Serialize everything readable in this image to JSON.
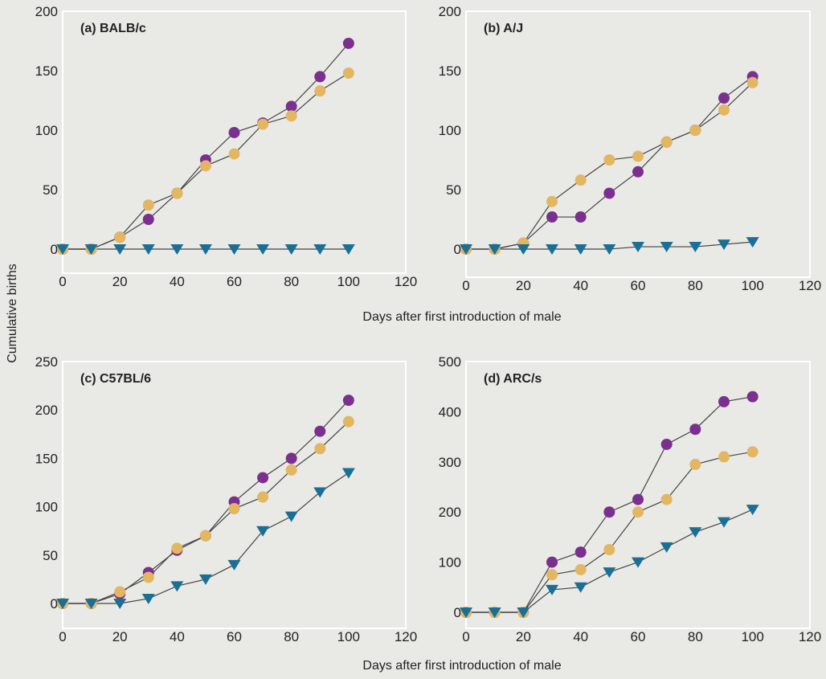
{
  "figure": {
    "y_label": "Cumulative births",
    "x_label_top": "Days after first introduction of male",
    "x_label_bottom": "Days after first introduction of male"
  },
  "colors": {
    "purple": "#7b2f8e",
    "tan": "#e3b661",
    "teal": "#1a6f95",
    "line": "#444444",
    "frame": "#ffffff"
  },
  "chart_data": [
    {
      "type": "line",
      "title": "(a) BALB/c",
      "x": [
        0,
        10,
        20,
        30,
        40,
        50,
        60,
        70,
        80,
        90,
        100
      ],
      "xlim": [
        0,
        120
      ],
      "ylim": [
        0,
        200
      ],
      "x_ticks": [
        0,
        20,
        40,
        60,
        80,
        100,
        120
      ],
      "y_ticks": [
        0,
        50,
        100,
        150,
        200
      ],
      "series": [
        {
          "color": "purple",
          "marker": "circle",
          "values": [
            0,
            0,
            10,
            25,
            47,
            75,
            98,
            106,
            120,
            145,
            173
          ]
        },
        {
          "color": "tan",
          "marker": "circle",
          "values": [
            0,
            0,
            10,
            37,
            47,
            70,
            80,
            105,
            112,
            133,
            148
          ]
        },
        {
          "color": "teal",
          "marker": "triangle",
          "values": [
            0,
            0,
            0,
            0,
            0,
            0,
            0,
            0,
            0,
            0,
            0
          ]
        }
      ]
    },
    {
      "type": "line",
      "title": "(b) A/J",
      "x": [
        0,
        10,
        20,
        30,
        40,
        50,
        60,
        70,
        80,
        90,
        100
      ],
      "xlim": [
        0,
        120
      ],
      "ylim": [
        0,
        200
      ],
      "x_ticks": [
        0,
        20,
        40,
        60,
        80,
        100,
        120
      ],
      "y_ticks": [
        0,
        50,
        100,
        150,
        200
      ],
      "series": [
        {
          "color": "purple",
          "marker": "circle",
          "values": [
            0,
            0,
            5,
            27,
            27,
            47,
            65,
            90,
            100,
            127,
            145
          ]
        },
        {
          "color": "tan",
          "marker": "circle",
          "values": [
            0,
            0,
            5,
            40,
            58,
            75,
            78,
            90,
            100,
            117,
            140
          ]
        },
        {
          "color": "teal",
          "marker": "triangle",
          "values": [
            0,
            0,
            0,
            0,
            0,
            0,
            2,
            2,
            2,
            4,
            6
          ]
        }
      ]
    },
    {
      "type": "line",
      "title": "(c) C57BL/6",
      "x": [
        0,
        10,
        20,
        30,
        40,
        50,
        60,
        70,
        80,
        90,
        100
      ],
      "xlim": [
        0,
        120
      ],
      "ylim": [
        0,
        250
      ],
      "x_ticks": [
        0,
        20,
        40,
        60,
        80,
        100,
        120
      ],
      "y_ticks": [
        0,
        50,
        100,
        150,
        200,
        250
      ],
      "series": [
        {
          "color": "purple",
          "marker": "circle",
          "values": [
            0,
            0,
            10,
            32,
            55,
            70,
            105,
            130,
            150,
            178,
            210
          ]
        },
        {
          "color": "tan",
          "marker": "circle",
          "values": [
            0,
            0,
            12,
            27,
            57,
            70,
            98,
            110,
            138,
            160,
            188
          ]
        },
        {
          "color": "teal",
          "marker": "triangle",
          "values": [
            0,
            0,
            0,
            5,
            18,
            25,
            40,
            75,
            90,
            115,
            135
          ]
        }
      ]
    },
    {
      "type": "line",
      "title": "(d) ARC/s",
      "x": [
        0,
        10,
        20,
        30,
        40,
        50,
        60,
        70,
        80,
        90,
        100
      ],
      "xlim": [
        0,
        120
      ],
      "ylim": [
        0,
        500
      ],
      "x_ticks": [
        0,
        20,
        40,
        60,
        80,
        100,
        120
      ],
      "y_ticks": [
        0,
        100,
        200,
        300,
        400,
        500
      ],
      "series": [
        {
          "color": "purple",
          "marker": "circle",
          "values": [
            0,
            0,
            0,
            100,
            120,
            200,
            225,
            335,
            365,
            420,
            430
          ]
        },
        {
          "color": "tan",
          "marker": "circle",
          "values": [
            0,
            0,
            0,
            75,
            85,
            125,
            200,
            225,
            295,
            310,
            320
          ]
        },
        {
          "color": "teal",
          "marker": "triangle",
          "values": [
            0,
            0,
            0,
            45,
            50,
            80,
            100,
            130,
            160,
            180,
            205
          ]
        }
      ]
    }
  ]
}
